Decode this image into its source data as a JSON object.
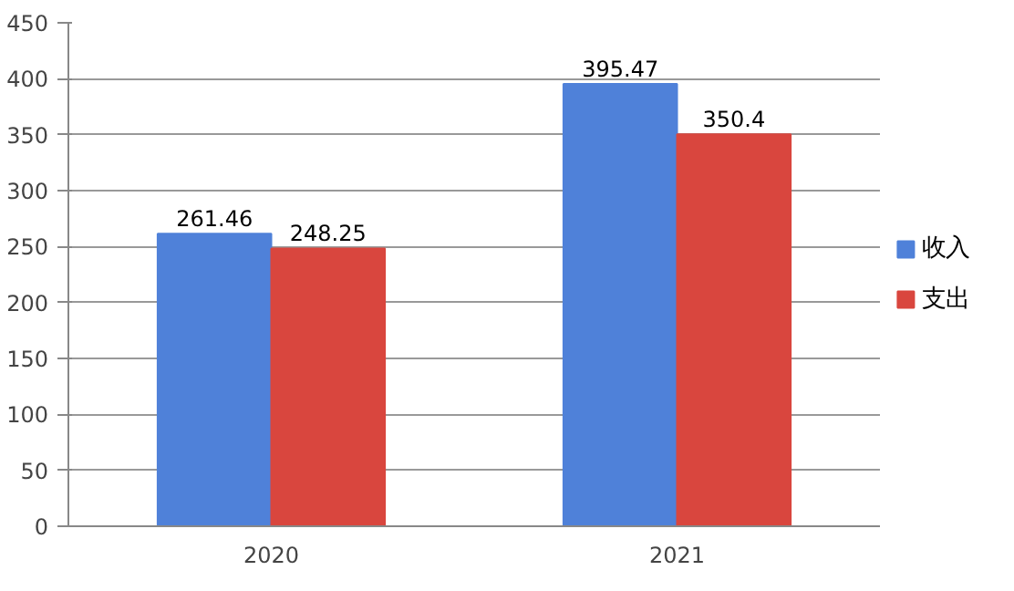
{
  "chart_data": {
    "type": "bar",
    "categories": [
      "2020",
      "2021"
    ],
    "series": [
      {
        "name": "收入",
        "color": "#4f81d9",
        "values": [
          261.46,
          395.47
        ]
      },
      {
        "name": "支出",
        "color": "#d9463e",
        "values": [
          248.25,
          350.4
        ]
      }
    ],
    "ylim": [
      0,
      450
    ],
    "yticks": [
      0,
      50,
      100,
      150,
      200,
      250,
      300,
      350,
      400,
      450
    ],
    "grid": "y",
    "legend": "right",
    "data_labels": true
  }
}
